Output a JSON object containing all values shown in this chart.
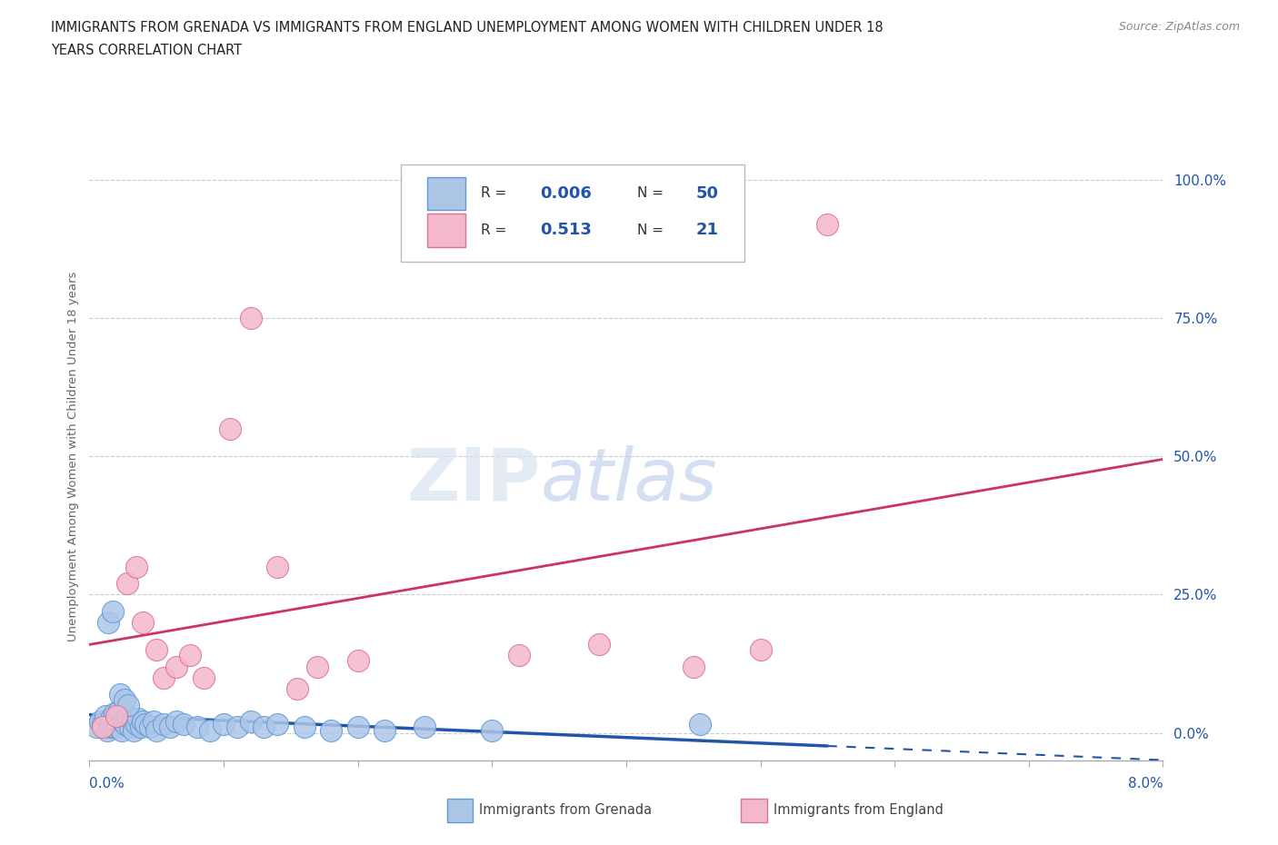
{
  "title_line1": "IMMIGRANTS FROM GRENADA VS IMMIGRANTS FROM ENGLAND UNEMPLOYMENT AMONG WOMEN WITH CHILDREN UNDER 18",
  "title_line2": "YEARS CORRELATION CHART",
  "source_text": "Source: ZipAtlas.com",
  "ylabel": "Unemployment Among Women with Children Under 18 years",
  "ytick_labels": [
    "0.0%",
    "25.0%",
    "50.0%",
    "75.0%",
    "100.0%"
  ],
  "ytick_values": [
    0,
    25,
    50,
    75,
    100
  ],
  "xlim": [
    0.0,
    8.0
  ],
  "ylim": [
    -5.0,
    105.0
  ],
  "grenada_color": "#adc6e8",
  "grenada_edge": "#5b9bd5",
  "england_color": "#f4b8cc",
  "england_edge": "#e07090",
  "grenada_line_color": "#2255aa",
  "england_line_color": "#cc3366",
  "watermark_zip": "ZIP",
  "watermark_atlas": "atlas",
  "grenada_x": [
    0.05,
    0.08,
    0.1,
    0.12,
    0.13,
    0.15,
    0.16,
    0.18,
    0.19,
    0.2,
    0.21,
    0.22,
    0.24,
    0.25,
    0.27,
    0.28,
    0.3,
    0.32,
    0.33,
    0.35,
    0.36,
    0.38,
    0.4,
    0.42,
    0.45,
    0.48,
    0.5,
    0.55,
    0.6,
    0.65,
    0.7,
    0.8,
    0.9,
    1.0,
    1.1,
    1.2,
    1.3,
    1.4,
    1.6,
    1.8,
    2.0,
    2.2,
    2.5,
    3.0,
    4.55,
    0.14,
    0.17,
    0.23,
    0.26,
    0.29
  ],
  "grenada_y": [
    1.0,
    2.0,
    1.5,
    3.0,
    0.5,
    1.0,
    2.5,
    1.0,
    3.5,
    2.0,
    1.0,
    4.0,
    0.5,
    2.0,
    1.5,
    3.0,
    1.0,
    2.0,
    0.5,
    1.5,
    2.5,
    1.0,
    2.0,
    1.5,
    1.0,
    2.0,
    0.5,
    1.5,
    1.0,
    2.0,
    1.5,
    1.0,
    0.5,
    1.5,
    1.0,
    2.0,
    1.0,
    1.5,
    1.0,
    0.5,
    1.0,
    0.5,
    1.0,
    0.5,
    1.5,
    20.0,
    22.0,
    7.0,
    6.0,
    5.0
  ],
  "england_x": [
    0.1,
    0.2,
    0.28,
    0.35,
    0.4,
    0.5,
    0.55,
    0.65,
    0.75,
    0.85,
    1.05,
    1.2,
    1.4,
    1.55,
    1.7,
    2.0,
    3.2,
    3.8,
    4.5,
    5.0,
    5.5
  ],
  "england_y": [
    1.0,
    3.0,
    27.0,
    30.0,
    20.0,
    15.0,
    10.0,
    12.0,
    14.0,
    10.0,
    55.0,
    75.0,
    30.0,
    8.0,
    12.0,
    13.0,
    14.0,
    16.0,
    12.0,
    15.0,
    92.0
  ],
  "grenada_line_end_solid": 5.5,
  "england_line_xstart": 0.0,
  "england_line_xend": 8.0
}
